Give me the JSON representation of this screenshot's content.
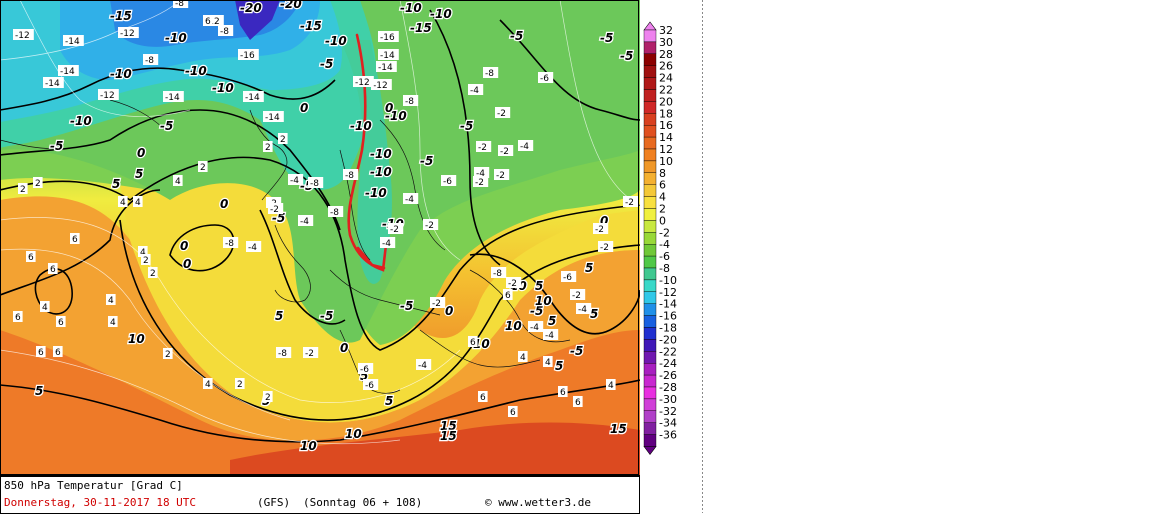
{
  "map": {
    "title": "850 hPa Temperatur [Grad C]",
    "date": "Donnerstag, 30-11-2017  18 UTC",
    "model": "(GFS)",
    "run": "(Sonntag 06 + 108)",
    "credit": "© www.wetter3.de"
  },
  "scale": {
    "labels": [
      "32",
      "30",
      "28",
      "26",
      "24",
      "22",
      "20",
      "18",
      "16",
      "14",
      "12",
      "10",
      "8",
      "6",
      "4",
      "2",
      "0",
      "-2",
      "-4",
      "-6",
      "-8",
      "-10",
      "-12",
      "-14",
      "-16",
      "-18",
      "-20",
      "-22",
      "-24",
      "-26",
      "-28",
      "-30",
      "-32",
      "-34",
      "-36"
    ],
    "colors": [
      "#ee82ee",
      "#b0206a",
      "#8b0000",
      "#a01010",
      "#b01818",
      "#c02020",
      "#d02828",
      "#d84020",
      "#e05020",
      "#e86a20",
      "#f08020",
      "#f09828",
      "#f4b030",
      "#f4c838",
      "#f8e040",
      "#f0f040",
      "#c8e840",
      "#98d838",
      "#70c838",
      "#50c848",
      "#40c890",
      "#38d8c8",
      "#30c8e8",
      "#2090e8",
      "#1860e0",
      "#2030d0",
      "#4018b8",
      "#7018b0",
      "#a820c0",
      "#c828d0",
      "#e830e0",
      "#d040d8",
      "#b040c8",
      "#8020a0",
      "#600080"
    ]
  },
  "map_labels": {
    "bold": [
      "-15",
      "-20",
      "-20",
      "-10",
      "-10",
      "-15",
      "-5",
      "-15",
      "-10",
      "-10",
      "-10",
      "-10",
      "-5",
      "-5",
      "-5",
      "-10",
      "-10",
      "-5",
      "-10",
      "-5",
      "-10",
      "-10",
      "-5",
      "-5",
      "0",
      "0",
      "-10",
      "-10",
      "-10",
      "-5",
      "-5",
      "0",
      "5",
      "5",
      "0",
      "-5",
      "0",
      "0",
      "-5",
      "5",
      "5",
      "-5",
      "0",
      "-5",
      "0",
      "10",
      "10",
      "5",
      "5",
      "10",
      "0",
      "5",
      "5",
      "5",
      "10",
      "5",
      "5",
      "5",
      "10",
      "15",
      "15",
      "10",
      "15",
      "10"
    ],
    "small": [
      "-12",
      "-8",
      "-8",
      "-14",
      "-12",
      "-12",
      "-16",
      "-8",
      "-14",
      "-14",
      "-12",
      "-14",
      "-14",
      "-14",
      "-16",
      "-14",
      "-12",
      "-8",
      "-8",
      "-6",
      "-4",
      "-2",
      "-2",
      "-14",
      "-12",
      "-8",
      "-8",
      "-8",
      "-4",
      "-2",
      "-4",
      "-2",
      "-4",
      "-8",
      "-2",
      "-2",
      "-6",
      "-4",
      "-4",
      "-2",
      "-2",
      "-2",
      "-8",
      "-2",
      "-6",
      "-6",
      "-4",
      "-4",
      "-2",
      "-4",
      "-8",
      "-2",
      "-2",
      "-2",
      "-4",
      "-4",
      "-6",
      "-4",
      "-2",
      "-2",
      "2",
      "4",
      "4",
      "2",
      "2",
      "2",
      "2",
      "4",
      "6",
      "6",
      "6",
      "6",
      "6",
      "4",
      "4",
      "2",
      "2",
      "2",
      "4",
      "6",
      "4",
      "2",
      "2",
      "4",
      "6",
      "6",
      "4",
      "6",
      "6",
      "4",
      "4",
      "6",
      "6",
      "6",
      "6"
    ]
  },
  "colors": {
    "route_line": "#e02020",
    "contour": "#000000"
  }
}
